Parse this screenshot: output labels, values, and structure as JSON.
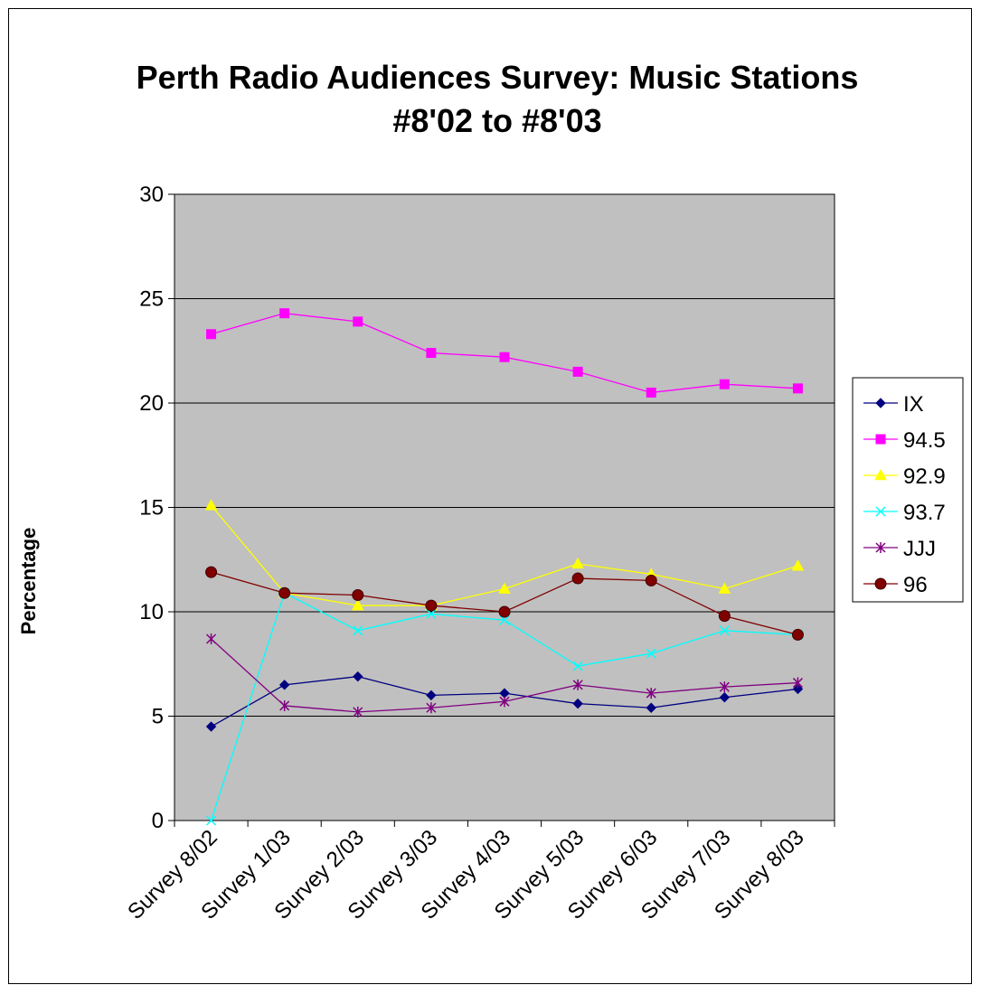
{
  "chart_data": {
    "type": "line",
    "title": "Perth Radio Audiences Survey: Music Stations",
    "subtitle": "#8'02 to #8'03",
    "ylabel": "Percentage",
    "xlabel": "",
    "ylim": [
      0,
      30
    ],
    "yticks": [
      "0",
      "5",
      "10",
      "15",
      "20",
      "25",
      "30"
    ],
    "categories": [
      "Survey 8/02",
      "Survey 1/03",
      "Survey 2/03",
      "Survey 3/03",
      "Survey 4/03",
      "Survey 5/03",
      "Survey 6/03",
      "Survey 7/03",
      "Survey 8/03"
    ],
    "grid": true,
    "legend_position": "right",
    "plot_background": "#c0c0c0",
    "series": [
      {
        "name": "IX",
        "color": "#000080",
        "marker": "diamond",
        "values": [
          4.5,
          6.5,
          6.9,
          6.0,
          6.1,
          5.6,
          5.4,
          5.9,
          6.3
        ]
      },
      {
        "name": "94.5",
        "color": "#ff00ff",
        "marker": "square",
        "values": [
          23.3,
          24.3,
          23.9,
          22.4,
          22.2,
          21.5,
          20.5,
          20.9,
          20.7
        ]
      },
      {
        "name": "92.9",
        "color": "#ffff00",
        "marker": "triangle",
        "values": [
          15.1,
          10.9,
          10.3,
          10.3,
          11.1,
          12.3,
          11.8,
          11.1,
          12.2
        ]
      },
      {
        "name": "93.7",
        "color": "#00ffff",
        "marker": "x",
        "values": [
          0.0,
          10.9,
          9.1,
          9.9,
          9.6,
          7.4,
          8.0,
          9.1,
          8.9
        ]
      },
      {
        "name": "JJJ",
        "color": "#800080",
        "marker": "star",
        "values": [
          8.7,
          5.5,
          5.2,
          5.4,
          5.7,
          6.5,
          6.1,
          6.4,
          6.6
        ]
      },
      {
        "name": "96",
        "color": "#800000",
        "marker": "circle",
        "values": [
          11.9,
          10.9,
          10.8,
          10.3,
          10.0,
          11.6,
          11.5,
          9.8,
          8.9
        ]
      }
    ]
  }
}
